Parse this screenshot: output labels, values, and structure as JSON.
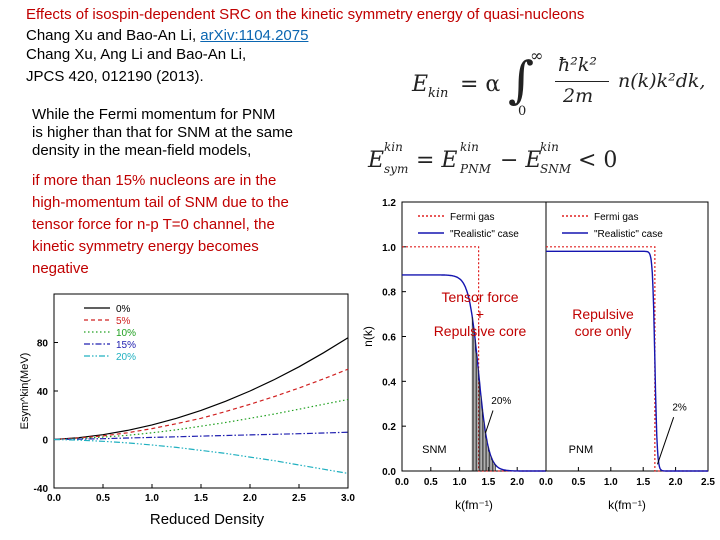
{
  "header": {
    "title": "Effects of isospin-dependent SRC on the kinetic symmetry energy of quasi-nucleons",
    "ref1_authors": "Chang Xu and Bao-An Li,",
    "ref1_arxiv": "arXiv:1104.2075",
    "ref2_authors": "Chang Xu, Ang Li and Bao-An Li,",
    "ref2_journal": "JPCS 420, 012190 (2013)."
  },
  "body_text": {
    "line1": "While the Fermi momentum for PNM",
    "line2": "is higher than that for SNM at the same",
    "line3": "density in the mean-field models,",
    "red1": "if more than 15% nucleons are in the",
    "red2": "high-momentum tail of SNM due to the",
    "red3": "tensor force for n-p T=0 channel, the",
    "red4": "kinetic symmetry energy becomes",
    "red5": "negative"
  },
  "equations": {
    "ekin_lhs": "E",
    "ekin_sub": "kin",
    "ekin_eq": "= α",
    "ekin_upper": "∞",
    "ekin_lower": "0",
    "ekin_num": "ħ²k²",
    "ekin_den": "2m",
    "ekin_tail": "n(k)k²dk,",
    "esym_lhs": "E",
    "esym_sub": "sym",
    "esym_sup": "kin",
    "esym_mid": "= E",
    "esym_pnm_sup": "kin",
    "esym_pnm_sub": "PNM",
    "esym_minus": "− E",
    "esym_snm_sup": "kin",
    "esym_snm_sub": "SNM",
    "esym_tail": "< 0"
  },
  "colors": {
    "red_text": "#c00000",
    "link": "#0b66b1",
    "blue_line": "#1515b0",
    "red_dotted": "#e02020"
  },
  "chart_data": [
    {
      "type": "line",
      "xlabel": "Reduced Density",
      "ylabel": "Esym^kin(MeV)",
      "xlim": [
        0.0,
        3.0
      ],
      "ylim": [
        -40,
        120
      ],
      "x_ticks": [
        "0.0",
        "0.5",
        "1.0",
        "1.5",
        "2.0",
        "2.5",
        "3.0"
      ],
      "y_ticks": [
        "-40",
        "0",
        "40",
        "80"
      ],
      "x": [
        0.0,
        0.25,
        0.5,
        0.75,
        1.0,
        1.25,
        1.5,
        1.75,
        2.0,
        2.25,
        2.5,
        2.75,
        3.0
      ],
      "series": [
        {
          "name": "0%",
          "color": "#000000",
          "dash": "",
          "values": [
            0,
            1.5,
            4,
            7.5,
            12,
            17.5,
            24,
            31.5,
            40,
            49.5,
            60,
            71.5,
            84
          ]
        },
        {
          "name": "5%",
          "color": "#d02020",
          "dash": "4,3",
          "values": [
            0,
            1.2,
            3,
            5.5,
            9,
            13,
            17.5,
            23,
            29,
            35.5,
            42.5,
            50,
            58
          ]
        },
        {
          "name": "10%",
          "color": "#20a020",
          "dash": "1.5,2.5",
          "values": [
            0,
            0.8,
            2,
            3.5,
            5.5,
            8,
            11,
            14,
            17.5,
            21,
            25,
            29,
            33
          ]
        },
        {
          "name": "15%",
          "color": "#2020b0",
          "dash": "6,2,1.5,2",
          "values": [
            0,
            0.3,
            0.7,
            1.2,
            1.7,
            2.2,
            2.8,
            3.3,
            3.8,
            4.3,
            4.8,
            5.4,
            6
          ]
        },
        {
          "name": "20%",
          "color": "#20b0c0",
          "dash": "6,2,1.5,2,1.5,2",
          "values": [
            0,
            -0.5,
            -1.5,
            -2.8,
            -4.5,
            -6.5,
            -9,
            -11.5,
            -14.5,
            -17.5,
            -21,
            -24.5,
            -28
          ]
        }
      ],
      "legend": "top-right"
    },
    {
      "type": "line",
      "label": "SNM",
      "xlabel": "k(fm⁻¹)",
      "ylabel": "n(k)",
      "xlim": [
        0.0,
        2.5
      ],
      "ylim": [
        0.0,
        1.2
      ],
      "x_ticks": [
        "0.0",
        "0.5",
        "1.0",
        "1.5",
        "2.0"
      ],
      "y_ticks": [
        "0.0",
        "0.2",
        "0.4",
        "0.6",
        "0.8",
        "1.0",
        "1.2"
      ],
      "kF": 1.33,
      "realistic_depletion": 0.875,
      "tail_fraction": "20%",
      "annotation": "Tensor force\n+\nRepulsive core",
      "series": [
        {
          "name": "Fermi gas",
          "color": "#e02020",
          "dash": "2,2"
        },
        {
          "name": "\"Realistic\" case",
          "color": "#1515b0",
          "dash": ""
        }
      ],
      "legend": "top"
    },
    {
      "type": "line",
      "label": "PNM",
      "xlabel": "k(fm⁻¹)",
      "xlim": [
        0.0,
        2.5
      ],
      "ylim": [
        0.0,
        1.2
      ],
      "x_ticks": [
        "0.0",
        "0.5",
        "1.0",
        "1.5",
        "2.0",
        "2.5"
      ],
      "kF": 1.68,
      "realistic_depletion": 0.98,
      "tail_fraction": "2%",
      "annotation": "Repulsive\ncore only",
      "series": [
        {
          "name": "Fermi gas",
          "color": "#e02020",
          "dash": "2,2"
        },
        {
          "name": "\"Realistic\" case",
          "color": "#1515b0",
          "dash": ""
        }
      ],
      "legend": "top"
    }
  ]
}
